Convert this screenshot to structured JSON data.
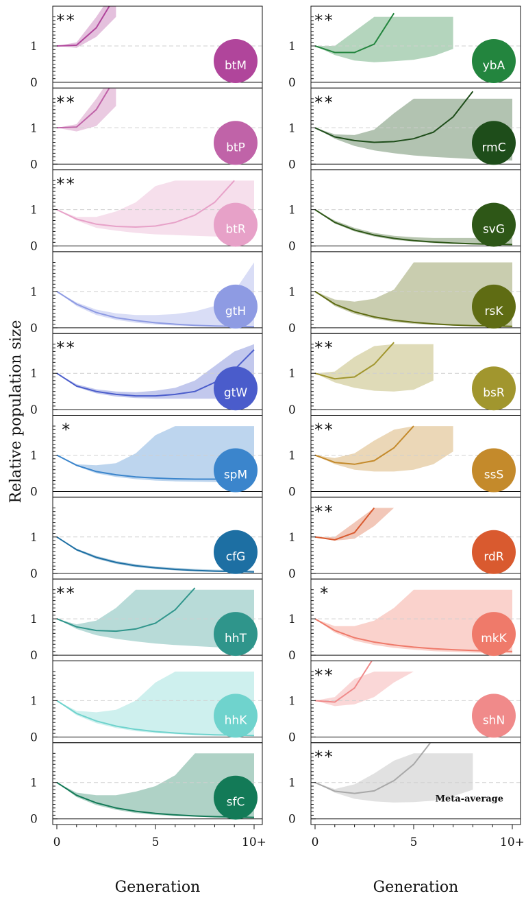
{
  "figure": {
    "ylabel": "Relative population size",
    "xlabel_left": "Generation",
    "xlabel_right": "Generation",
    "x_tick_labels": [
      "0",
      "5",
      "10+"
    ],
    "y_tick_labels": [
      "0",
      "1"
    ]
  },
  "chart_data": {
    "type": "area",
    "x": [
      0,
      1,
      2,
      3,
      4,
      5,
      6,
      7,
      8,
      9,
      10
    ],
    "xlim": [
      0,
      10
    ],
    "ylim": [
      0,
      1.8
    ],
    "reference_line_y": 1,
    "grid": false,
    "panels": [
      {
        "col": 0,
        "row": 0,
        "label": "btM",
        "stars": "**",
        "color": "#b0459b",
        "mean": [
          1.0,
          1.02,
          1.5,
          2.4
        ],
        "band_lo": [
          1.0,
          0.95,
          1.25,
          1.8
        ],
        "band_hi": [
          1.0,
          1.1,
          1.8,
          2.6
        ]
      },
      {
        "col": 0,
        "row": 1,
        "label": "btP",
        "stars": "**",
        "color": "#c063a8",
        "mean": [
          1.0,
          1.02,
          1.5,
          2.4
        ],
        "band_lo": [
          1.0,
          0.9,
          1.05,
          1.6
        ],
        "band_hi": [
          1.0,
          1.1,
          1.8,
          2.6
        ]
      },
      {
        "col": 0,
        "row": 2,
        "label": "btR",
        "stars": "**",
        "color": "#e7a1c8",
        "mean": [
          1.0,
          0.74,
          0.6,
          0.54,
          0.52,
          0.55,
          0.65,
          0.85,
          1.2,
          1.8
        ],
        "band_lo": [
          1.0,
          0.7,
          0.5,
          0.42,
          0.36,
          0.32,
          0.3,
          0.28,
          0.26,
          0.25,
          0.25
        ],
        "band_hi": [
          1.0,
          0.8,
          0.8,
          0.95,
          1.2,
          1.65,
          1.8,
          1.8,
          1.8,
          1.8,
          1.8
        ]
      },
      {
        "col": 0,
        "row": 3,
        "label": "gtH",
        "stars": "",
        "color": "#8e9be3",
        "mean": [
          1.0,
          0.65,
          0.42,
          0.28,
          0.2,
          0.14,
          0.1,
          0.07,
          0.05,
          0.04,
          0.03
        ],
        "band_lo": [
          1.0,
          0.6,
          0.35,
          0.22,
          0.14,
          0.09,
          0.06,
          0.04,
          0.03,
          0.02,
          0.02
        ],
        "band_hi": [
          1.0,
          0.7,
          0.5,
          0.4,
          0.35,
          0.35,
          0.38,
          0.45,
          0.6,
          1.0,
          1.8
        ]
      },
      {
        "col": 0,
        "row": 4,
        "label": "gtW",
        "stars": "**",
        "color": "#4a5ccb",
        "mean": [
          1.0,
          0.65,
          0.5,
          0.42,
          0.38,
          0.38,
          0.42,
          0.5,
          0.75,
          1.1,
          1.65
        ],
        "band_lo": [
          1.0,
          0.62,
          0.45,
          0.36,
          0.32,
          0.3,
          0.3,
          0.3,
          0.3,
          0.3,
          0.3
        ],
        "band_hi": [
          1.0,
          0.7,
          0.56,
          0.5,
          0.48,
          0.52,
          0.6,
          0.8,
          1.2,
          1.6,
          1.8
        ]
      },
      {
        "col": 0,
        "row": 5,
        "label": "spM",
        "stars": "*",
        "color": "#3b85cc",
        "mean": [
          1.0,
          0.72,
          0.55,
          0.46,
          0.4,
          0.37,
          0.35,
          0.34,
          0.34,
          0.35,
          0.37
        ],
        "band_lo": [
          1.0,
          0.7,
          0.5,
          0.4,
          0.34,
          0.3,
          0.28,
          0.27,
          0.26,
          0.26,
          0.26
        ],
        "band_hi": [
          1.0,
          0.75,
          0.72,
          0.78,
          1.05,
          1.55,
          1.8,
          1.8,
          1.8,
          1.8,
          1.8
        ]
      },
      {
        "col": 0,
        "row": 6,
        "label": "cfG",
        "stars": "",
        "color": "#1d6fa3",
        "mean": [
          1.0,
          0.65,
          0.44,
          0.3,
          0.21,
          0.15,
          0.11,
          0.08,
          0.06,
          0.05,
          0.04
        ],
        "band_lo": [
          1.0,
          0.62,
          0.4,
          0.26,
          0.17,
          0.12,
          0.08,
          0.06,
          0.04,
          0.03,
          0.02
        ],
        "band_hi": [
          1.0,
          0.68,
          0.48,
          0.34,
          0.25,
          0.19,
          0.15,
          0.12,
          0.1,
          0.09,
          0.08
        ]
      },
      {
        "col": 0,
        "row": 7,
        "label": "hhT",
        "stars": "**",
        "color": "#2f958b",
        "mean": [
          1.0,
          0.78,
          0.68,
          0.66,
          0.72,
          0.88,
          1.25,
          1.85
        ],
        "band_lo": [
          1.0,
          0.72,
          0.55,
          0.45,
          0.38,
          0.32,
          0.28,
          0.25,
          0.22,
          0.2,
          0.19
        ],
        "band_hi": [
          1.0,
          0.85,
          0.95,
          1.3,
          1.8,
          1.8,
          1.8,
          1.8,
          1.8,
          1.8,
          1.8
        ]
      },
      {
        "col": 0,
        "row": 8,
        "label": "hhK",
        "stars": "",
        "color": "#6fd3cd",
        "mean": [
          1.0,
          0.65,
          0.44,
          0.3,
          0.21,
          0.15,
          0.11,
          0.08,
          0.06,
          0.05,
          0.04
        ],
        "band_lo": [
          1.0,
          0.6,
          0.38,
          0.25,
          0.16,
          0.11,
          0.08,
          0.06,
          0.04,
          0.03,
          0.02
        ],
        "band_hi": [
          1.0,
          0.72,
          0.68,
          0.75,
          1.0,
          1.5,
          1.8,
          1.8,
          1.8,
          1.8,
          1.8
        ]
      },
      {
        "col": 0,
        "row": 9,
        "label": "sfC",
        "stars": "",
        "color": "#137a57",
        "mean": [
          1.0,
          0.65,
          0.44,
          0.3,
          0.21,
          0.15,
          0.11,
          0.08,
          0.06,
          0.05,
          0.04
        ],
        "band_lo": [
          1.0,
          0.6,
          0.38,
          0.25,
          0.16,
          0.11,
          0.08,
          0.06,
          0.04,
          0.03,
          0.02
        ],
        "band_hi": [
          1.0,
          0.72,
          0.65,
          0.65,
          0.75,
          0.9,
          1.2,
          1.8,
          1.8,
          1.8,
          1.8
        ]
      },
      {
        "col": 1,
        "row": 0,
        "label": "ybA",
        "stars": "**",
        "color": "#23853e",
        "mean": [
          1.0,
          0.82,
          0.82,
          1.05,
          1.9
        ],
        "band_lo": [
          1.0,
          0.75,
          0.6,
          0.55,
          0.58,
          0.62,
          0.72,
          0.92
        ],
        "band_hi": [
          1.0,
          1.0,
          1.4,
          1.8,
          1.8,
          1.8,
          1.8,
          1.8
        ]
      },
      {
        "col": 1,
        "row": 1,
        "label": "rmC",
        "stars": "**",
        "color": "#1e4d1a",
        "mean": [
          1.0,
          0.75,
          0.65,
          0.6,
          0.62,
          0.7,
          0.88,
          1.3,
          2.0
        ],
        "band_lo": [
          1.0,
          0.7,
          0.5,
          0.38,
          0.3,
          0.24,
          0.2,
          0.17,
          0.14,
          0.12,
          0.1
        ],
        "band_hi": [
          1.0,
          0.82,
          0.8,
          0.95,
          1.4,
          1.8,
          1.8,
          1.8,
          1.8,
          1.8,
          1.8
        ]
      },
      {
        "col": 1,
        "row": 2,
        "label": "svG",
        "stars": "",
        "color": "#2e5717",
        "mean": [
          1.0,
          0.65,
          0.44,
          0.3,
          0.21,
          0.15,
          0.11,
          0.08,
          0.06,
          0.05,
          0.04
        ],
        "band_lo": [
          1.0,
          0.62,
          0.4,
          0.26,
          0.17,
          0.12,
          0.08,
          0.06,
          0.04,
          0.03,
          0.02
        ],
        "band_hi": [
          1.0,
          0.7,
          0.5,
          0.36,
          0.28,
          0.24,
          0.22,
          0.22,
          0.22,
          0.23,
          0.25
        ]
      },
      {
        "col": 1,
        "row": 3,
        "label": "rsK",
        "stars": "",
        "color": "#5f6c13",
        "mean": [
          1.0,
          0.65,
          0.44,
          0.3,
          0.21,
          0.15,
          0.11,
          0.08,
          0.06,
          0.05,
          0.04
        ],
        "band_lo": [
          1.0,
          0.6,
          0.38,
          0.25,
          0.16,
          0.11,
          0.08,
          0.06,
          0.04,
          0.03,
          0.02
        ],
        "band_hi": [
          1.0,
          0.78,
          0.72,
          0.8,
          1.05,
          1.8,
          1.8,
          1.8,
          1.8,
          1.8,
          1.8
        ]
      },
      {
        "col": 1,
        "row": 4,
        "label": "bsR",
        "stars": "**",
        "color": "#a1962e",
        "mean": [
          1.0,
          0.85,
          0.9,
          1.25,
          1.85
        ],
        "band_lo": [
          1.0,
          0.75,
          0.6,
          0.52,
          0.5,
          0.55,
          0.8
        ],
        "band_hi": [
          1.0,
          1.05,
          1.45,
          1.75,
          1.8,
          1.8,
          1.8
        ]
      },
      {
        "col": 1,
        "row": 5,
        "label": "ssS",
        "stars": "**",
        "color": "#c48a2b",
        "mean": [
          1.0,
          0.8,
          0.75,
          0.85,
          1.2,
          1.8
        ],
        "band_lo": [
          1.0,
          0.75,
          0.6,
          0.55,
          0.55,
          0.6,
          0.75,
          1.1
        ],
        "band_hi": [
          1.0,
          0.92,
          1.05,
          1.4,
          1.7,
          1.8,
          1.8,
          1.8
        ]
      },
      {
        "col": 1,
        "row": 6,
        "label": "rdR",
        "stars": "**",
        "color": "#d95a2f",
        "mean": [
          1.0,
          0.92,
          1.12,
          1.8
        ],
        "band_lo": [
          1.0,
          0.9,
          0.95,
          1.3,
          1.8
        ],
        "band_hi": [
          1.0,
          1.0,
          1.4,
          1.8,
          1.8
        ]
      },
      {
        "col": 1,
        "row": 7,
        "label": "mkK",
        "stars": "*",
        "color": "#ef7a6a",
        "mean": [
          1.0,
          0.68,
          0.48,
          0.36,
          0.28,
          0.22,
          0.18,
          0.15,
          0.13,
          0.11,
          0.1
        ],
        "band_lo": [
          1.0,
          0.62,
          0.4,
          0.28,
          0.2,
          0.15,
          0.11,
          0.09,
          0.07,
          0.06,
          0.05
        ],
        "band_hi": [
          1.0,
          0.8,
          0.8,
          0.95,
          1.3,
          1.8,
          1.8,
          1.8,
          1.8,
          1.8,
          1.8
        ]
      },
      {
        "col": 1,
        "row": 8,
        "label": "shN",
        "stars": "**",
        "color": "#f08a8a",
        "mean": [
          1.0,
          0.96,
          1.35,
          2.2
        ],
        "band_lo": [
          1.0,
          0.85,
          0.9,
          1.1,
          1.5,
          1.8
        ],
        "band_hi": [
          1.0,
          1.1,
          1.6,
          1.8,
          1.8,
          1.8
        ]
      },
      {
        "col": 1,
        "row": 9,
        "label": "Meta-average",
        "stars": "**",
        "color": "#a8a8a8",
        "mean": [
          1.0,
          0.76,
          0.7,
          0.77,
          1.05,
          1.5,
          2.2
        ],
        "band_lo": [
          1.0,
          0.72,
          0.55,
          0.48,
          0.45,
          0.46,
          0.5,
          0.62,
          0.8
        ],
        "band_hi": [
          1.0,
          0.82,
          0.95,
          1.25,
          1.6,
          1.8,
          1.8,
          1.8,
          1.8
        ]
      }
    ]
  }
}
